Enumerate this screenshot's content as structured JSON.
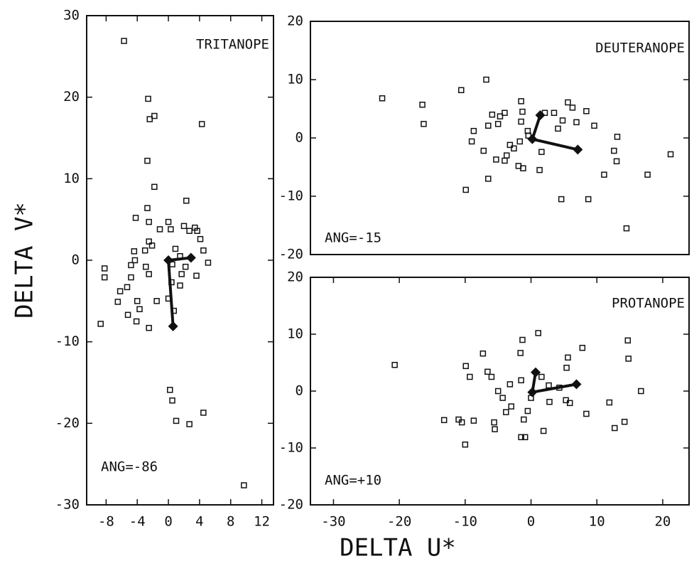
{
  "figure": {
    "xlabel": "DELTA U*",
    "ylabel": "DELTA V*"
  },
  "chart_data": [
    {
      "type": "scatter",
      "title": "TRITANOPE",
      "annotation": "ANG=-86",
      "color": "#111111",
      "xlim": [
        -10.5,
        13.5
      ],
      "ylim": [
        -30,
        30
      ],
      "xticks": [
        -8,
        -4,
        0,
        4,
        8,
        12
      ],
      "yticks": [
        -30,
        -20,
        -10,
        0,
        10,
        20,
        30
      ],
      "points": {
        "x": [
          -5.7,
          -2.6,
          -2.4,
          -1.8,
          4.3,
          -2.7,
          -1.8,
          -2.7,
          2.3,
          -4.2,
          -2.5,
          -2.5,
          -2.1,
          -1.1,
          0,
          0.3,
          2,
          2.7,
          3.4,
          3.7,
          4.1,
          4.5,
          5.1,
          3.6,
          2.2,
          1.5,
          0.9,
          1.7,
          1.5,
          0.5,
          0.4,
          0.7,
          0,
          -1.5,
          -2.5,
          -2.9,
          -4.3,
          -4.4,
          -3,
          -4.8,
          -4.8,
          -5.3,
          -6.2,
          -6.5,
          -5.2,
          -4.1,
          -4,
          -3.7,
          -2.5,
          -8.2,
          -8.2,
          -8.7,
          0.2,
          0.5,
          1,
          2.7,
          4.5,
          9.7
        ],
        "y": [
          26.9,
          19.8,
          17.3,
          17.7,
          16.7,
          12.2,
          9,
          6.4,
          7.3,
          5.2,
          4.7,
          2.3,
          1.8,
          3.8,
          4.7,
          3.8,
          4.2,
          3.6,
          4,
          3.6,
          2.6,
          1.2,
          -0.3,
          -1.9,
          -0.8,
          0.5,
          1.4,
          -1.7,
          -3.1,
          -0.5,
          -2.7,
          -6.2,
          -4.7,
          -5,
          -1.7,
          -0.8,
          0,
          1.1,
          1.2,
          -0.6,
          -2.1,
          -3.3,
          -3.8,
          -5.1,
          -6.7,
          -7.5,
          -5,
          -6,
          -8.3,
          -1,
          -2.1,
          -7.8,
          -15.9,
          -17.2,
          -19.7,
          -20.1,
          -18.7,
          -27.6
        ]
      },
      "vector": {
        "x": [
          0.6,
          0,
          2.9
        ],
        "y": [
          -8.1,
          0,
          0.3
        ]
      }
    },
    {
      "type": "scatter",
      "title": "DEUTERANOPE",
      "annotation": "ANG=-15",
      "color": "#111111",
      "xlim": [
        -33.5,
        24
      ],
      "ylim": [
        -20,
        20
      ],
      "yticks": [
        -20,
        -10,
        0,
        10,
        20
      ],
      "points": {
        "x": [
          -22.6,
          -16.5,
          -16.3,
          -10.6,
          -6.8,
          -8.7,
          -9,
          -9.9,
          -6.5,
          -7.2,
          -6.5,
          -5.9,
          -5,
          -4.7,
          -4,
          -3.7,
          -4,
          -2.6,
          -1.7,
          -1.5,
          -1.3,
          -1.5,
          -0.5,
          -0.4,
          -1.9,
          -1.2,
          1.3,
          1.6,
          2.1,
          3.5,
          4.1,
          4.8,
          5.6,
          6.3,
          8.4,
          6.9,
          9.6,
          4.6,
          8.7,
          13.1,
          12.6,
          13,
          11.1,
          17.7,
          14.5,
          21.2,
          -5.3,
          -3.2
        ],
        "y": [
          6.8,
          5.7,
          2.4,
          8.2,
          10,
          1.2,
          -0.6,
          -8.9,
          -7,
          -2.2,
          2.1,
          4,
          2.4,
          3.7,
          4.3,
          -3,
          -3.9,
          -1.8,
          -0.6,
          6.3,
          4.5,
          2.8,
          1.2,
          0.4,
          -4.8,
          -5.2,
          -5.5,
          -2.4,
          4.3,
          4.3,
          1.6,
          3,
          6.1,
          5.2,
          4.6,
          2.7,
          2.1,
          -10.5,
          -10.5,
          0.2,
          -2.2,
          -4,
          -6.3,
          -6.3,
          -15.5,
          -2.8,
          -3.7,
          -1.2
        ]
      },
      "vector": {
        "x": [
          1.4,
          0.2,
          7.1
        ],
        "y": [
          3.9,
          -0.2,
          -2
        ]
      }
    },
    {
      "type": "scatter",
      "title": "PROTANOPE",
      "annotation": "ANG=+10",
      "color": "#111111",
      "xlim": [
        -33.5,
        24
      ],
      "ylim": [
        -20,
        20
      ],
      "xticks": [
        -30,
        -20,
        -10,
        0,
        10,
        20
      ],
      "yticks": [
        -20,
        -10,
        0,
        10,
        20
      ],
      "points": {
        "x": [
          -20.7,
          -13.2,
          -11,
          -10.5,
          -10,
          -9.9,
          -9.3,
          -7.3,
          -6.6,
          -6,
          -8.7,
          -5.6,
          -5.5,
          -5,
          -4.3,
          -3.8,
          -3.2,
          -3,
          -1.6,
          -1.3,
          -1.5,
          -1.1,
          -1.5,
          -0.9,
          1.1,
          1.6,
          1.9,
          2.7,
          2.8,
          4.3,
          5.3,
          5.6,
          5.4,
          5.9,
          7.8,
          8.4,
          11.9,
          12.7,
          14.2,
          14.7,
          14.8,
          16.7,
          0,
          -0.5
        ],
        "y": [
          4.6,
          -5.1,
          -5,
          -5.5,
          -9.4,
          4.4,
          2.5,
          6.6,
          3.4,
          2.5,
          -5.2,
          -5.5,
          -6.7,
          0,
          -1.2,
          -3.7,
          1.2,
          -2.7,
          6.7,
          9,
          1.9,
          -5,
          -8.1,
          -8.1,
          10.2,
          2.5,
          -7,
          1,
          -1.9,
          0.6,
          -1.6,
          5.9,
          4.1,
          -2.1,
          7.6,
          -4,
          -2,
          -6.5,
          -5.4,
          8.9,
          5.7,
          0,
          -1.2,
          -3.5
        ]
      },
      "vector": {
        "x": [
          0.7,
          0.2,
          6.9
        ],
        "y": [
          3.3,
          -0.2,
          1.2
        ]
      }
    }
  ]
}
